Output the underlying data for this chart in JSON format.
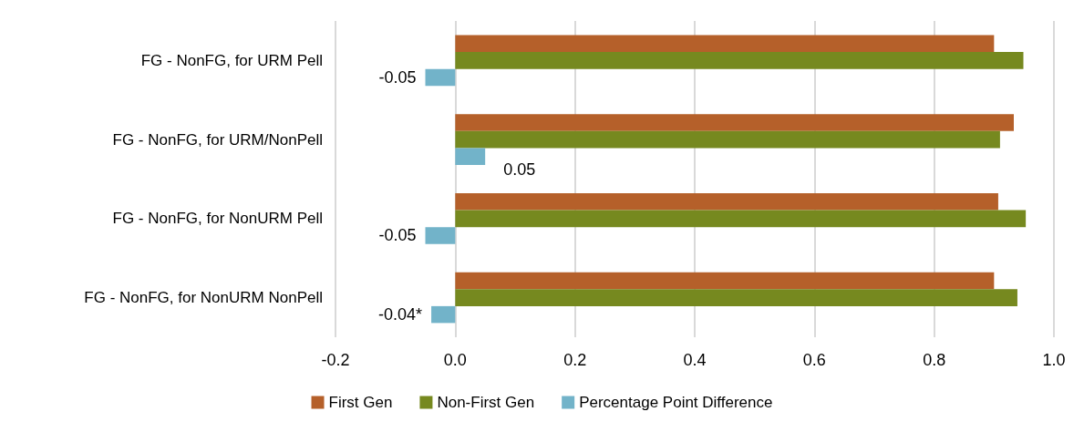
{
  "chart_data": {
    "type": "bar",
    "orientation": "horizontal",
    "categories": [
      "FG - NonFG, for URM Pell",
      "FG - NonFG, for URM/NonPell",
      "FG - NonFG, for NonURM Pell",
      "FG - NonFG, for NonURM NonPell"
    ],
    "series": [
      {
        "name": "First Gen",
        "color": "#b5602a",
        "values": [
          0.9,
          0.933,
          0.907,
          0.9
        ]
      },
      {
        "name": "Non-First Gen",
        "color": "#76891f",
        "values": [
          0.949,
          0.91,
          0.953,
          0.939
        ]
      },
      {
        "name": "Percentage Point Difference",
        "color": "#72b3c9",
        "values": [
          -0.05,
          0.05,
          -0.05,
          -0.04
        ],
        "value_labels": [
          "-0.05",
          "0.05",
          "-0.05",
          "-0.04*"
        ]
      }
    ],
    "xlim": [
      -0.2,
      1.0
    ],
    "xticks": [
      {
        "value": -0.2,
        "label": "-0.2"
      },
      {
        "value": 0,
        "label": "0.0"
      },
      {
        "value": 0.2,
        "label": "0.2"
      },
      {
        "value": 0.4,
        "label": "0.4"
      },
      {
        "value": 0.6,
        "label": "0.6"
      },
      {
        "value": 0.8,
        "label": "0.8"
      },
      {
        "value": 1.0,
        "label": "1.0"
      }
    ],
    "grid": "x",
    "legend": "bottom"
  }
}
